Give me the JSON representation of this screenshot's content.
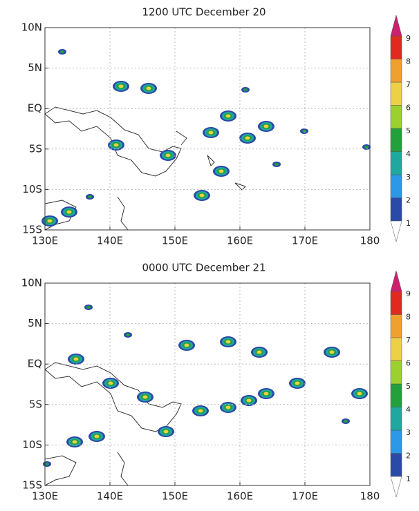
{
  "chart_data": [
    {
      "type": "contour",
      "title": "1200 UTC December 20",
      "xlim": [
        130,
        180
      ],
      "ylim": [
        -15,
        10
      ],
      "xticks": [
        {
          "value": 130,
          "label": "130E"
        },
        {
          "value": 140,
          "label": "140E"
        },
        {
          "value": 150,
          "label": "150E"
        },
        {
          "value": 160,
          "label": "160E"
        },
        {
          "value": 170,
          "label": "170E"
        },
        {
          "value": 180,
          "label": "180"
        }
      ],
      "yticks": [
        {
          "value": 10,
          "label": "10N"
        },
        {
          "value": 5,
          "label": "5N"
        },
        {
          "value": 0,
          "label": "EQ"
        },
        {
          "value": -5,
          "label": "5S"
        },
        {
          "value": -10,
          "label": "10S"
        },
        {
          "value": -15,
          "label": "15S"
        }
      ],
      "grid": true,
      "colorbar": {
        "ticks": [
          1,
          2,
          3,
          4,
          5,
          6,
          7,
          8,
          9
        ],
        "colors": [
          "#2a4aa8",
          "#2c98e6",
          "#1fa8a0",
          "#22a03c",
          "#9cd030",
          "#ecd048",
          "#f0a030",
          "#e02a20",
          "#cc2070"
        ]
      }
    },
    {
      "type": "contour",
      "title": "0000 UTC December 21",
      "xlim": [
        130,
        180
      ],
      "ylim": [
        -15,
        10
      ],
      "xticks": [
        {
          "value": 130,
          "label": "130E"
        },
        {
          "value": 140,
          "label": "140E"
        },
        {
          "value": 150,
          "label": "150E"
        },
        {
          "value": 160,
          "label": "160E"
        },
        {
          "value": 170,
          "label": "170E"
        },
        {
          "value": 180,
          "label": "180"
        }
      ],
      "yticks": [
        {
          "value": 10,
          "label": "10N"
        },
        {
          "value": 5,
          "label": "5N"
        },
        {
          "value": 0,
          "label": "EQ"
        },
        {
          "value": -5,
          "label": "5S"
        },
        {
          "value": -10,
          "label": "10S"
        },
        {
          "value": -15,
          "label": "15S"
        }
      ],
      "grid": true,
      "colorbar": {
        "ticks": [
          1,
          2,
          3,
          4,
          5,
          6,
          7,
          8,
          9
        ],
        "colors": [
          "#2a4aa8",
          "#2c98e6",
          "#1fa8a0",
          "#22a03c",
          "#9cd030",
          "#ecd048",
          "#f0a030",
          "#e02a20",
          "#cc2070"
        ]
      }
    }
  ]
}
